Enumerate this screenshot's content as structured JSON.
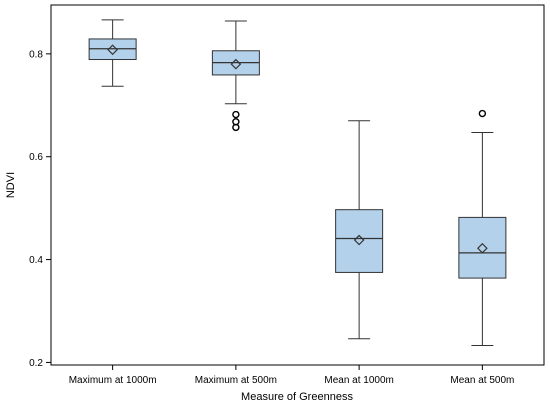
{
  "chart_data": {
    "type": "box",
    "xlabel": "Measure of Greenness",
    "ylabel": "NDVI",
    "ylim": [
      0.195,
      0.895
    ],
    "yticks": [
      0.2,
      0.4,
      0.6,
      0.8
    ],
    "ytick_labels": [
      "0.2",
      "0.4",
      "0.6",
      "0.8"
    ],
    "grid": false,
    "box_color": "#b3d1ea",
    "line_color": "#333333",
    "categories": [
      "Maximum at 1000m",
      "Maximum at 500m",
      "Mean at 1000m",
      "Mean at 500m"
    ],
    "boxes": [
      {
        "whisker_low": 0.737,
        "q1": 0.789,
        "median": 0.81,
        "q3": 0.829,
        "whisker_high": 0.866,
        "mean": 0.808,
        "outliers": []
      },
      {
        "whisker_low": 0.703,
        "q1": 0.759,
        "median": 0.783,
        "q3": 0.806,
        "whisker_high": 0.864,
        "mean": 0.78,
        "outliers": [
          0.682,
          0.668,
          0.657
        ]
      },
      {
        "whisker_low": 0.246,
        "q1": 0.375,
        "median": 0.441,
        "q3": 0.497,
        "whisker_high": 0.67,
        "mean": 0.438,
        "outliers": []
      },
      {
        "whisker_low": 0.233,
        "q1": 0.364,
        "median": 0.413,
        "q3": 0.482,
        "whisker_high": 0.647,
        "mean": 0.422,
        "outliers": [
          0.684
        ]
      }
    ]
  }
}
